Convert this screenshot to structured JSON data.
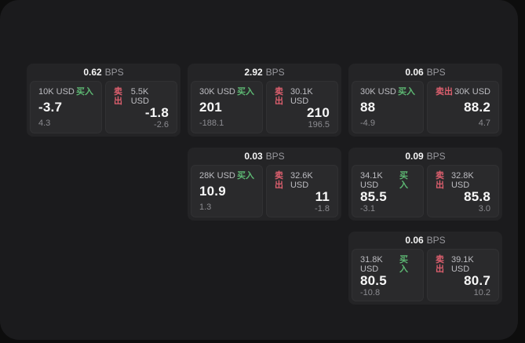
{
  "labels": {
    "bps": "BPS",
    "buy": "买入",
    "sell": "卖出"
  },
  "colors": {
    "background": "#0d0d0d",
    "surface": "#1b1b1d",
    "card": "#242426",
    "panel": "#2a2a2c",
    "buy_accent": "#5db873",
    "sell_accent": "#dd5f6e",
    "primary_text": "#f5f5f5",
    "muted_text": "#8b8b90"
  },
  "cards": [
    {
      "bps": "0.62",
      "buy": {
        "amount": "10K USD",
        "price": "-3.7",
        "delta": "4.3"
      },
      "sell": {
        "amount": "5.5K USD",
        "price": "-1.8",
        "delta": "-2.6"
      }
    },
    {
      "bps": "2.92",
      "buy": {
        "amount": "30K USD",
        "price": "201",
        "delta": "-188.1"
      },
      "sell": {
        "amount": "30.1K USD",
        "price": "210",
        "delta": "196.5"
      }
    },
    {
      "bps": "0.06",
      "buy": {
        "amount": "30K USD",
        "price": "88",
        "delta": "-4.9"
      },
      "sell": {
        "amount": "30K USD",
        "price": "88.2",
        "delta": "4.7"
      }
    },
    {
      "bps": "0.03",
      "buy": {
        "amount": "28K USD",
        "price": "10.9",
        "delta": "1.3"
      },
      "sell": {
        "amount": "32.6K USD",
        "price": "11",
        "delta": "-1.8"
      }
    },
    {
      "bps": "0.09",
      "buy": {
        "amount": "34.1K USD",
        "price": "85.5",
        "delta": "-3.1"
      },
      "sell": {
        "amount": "32.8K USD",
        "price": "85.8",
        "delta": "3.0"
      }
    },
    {
      "bps": "0.06",
      "buy": {
        "amount": "31.8K USD",
        "price": "80.5",
        "delta": "-10.8"
      },
      "sell": {
        "amount": "39.1K USD",
        "price": "80.7",
        "delta": "10.2"
      }
    }
  ]
}
